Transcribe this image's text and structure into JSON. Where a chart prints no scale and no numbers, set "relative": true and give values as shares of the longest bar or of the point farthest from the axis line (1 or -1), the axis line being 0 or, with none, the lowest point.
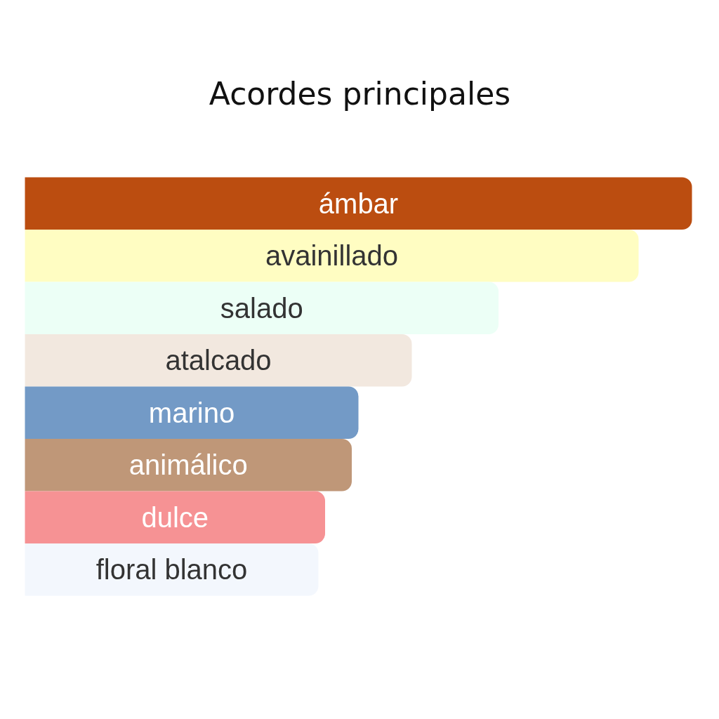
{
  "chart_data": {
    "type": "bar",
    "orientation": "horizontal",
    "relative": true,
    "title": "Acordes principales",
    "categories": [
      "ámbar",
      "avainillado",
      "salado",
      "atalcado",
      "marino",
      "animálico",
      "dulce",
      "floral blanco"
    ],
    "values": [
      1,
      0.92,
      0.71,
      0.58,
      0.5,
      0.49,
      0.45,
      0.44
    ],
    "colors": [
      "#bb4d10",
      "#fffdc2",
      "#ecfff6",
      "#f2e8df",
      "#739ac6",
      "#bf9778",
      "#f69294",
      "#f3f7fd"
    ]
  }
}
